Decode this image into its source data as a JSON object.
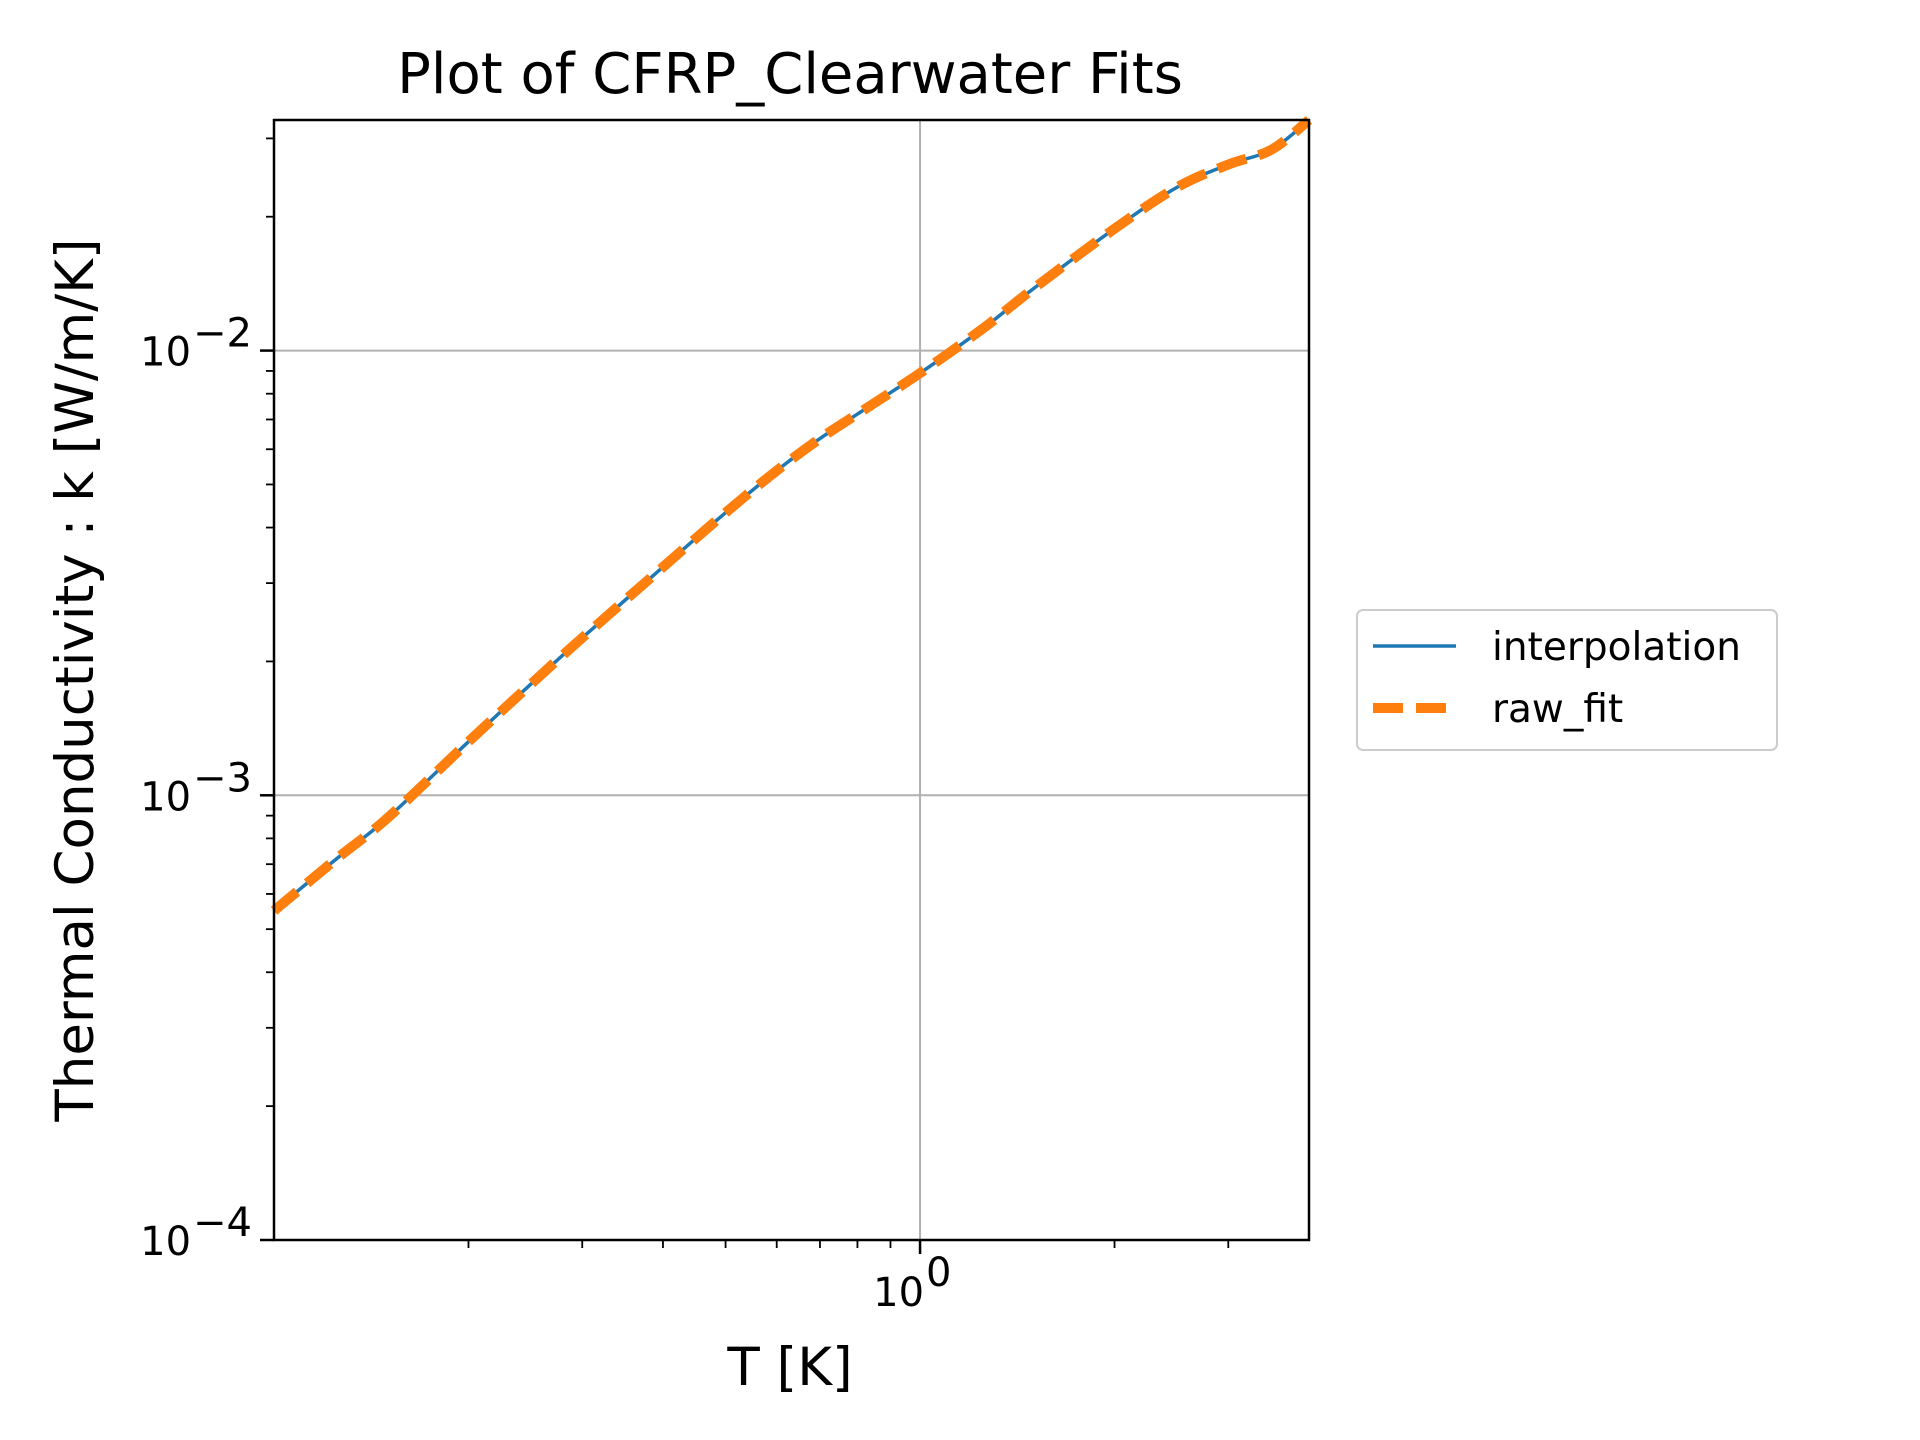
{
  "chart_data": {
    "type": "line",
    "title": "Plot of CFRP_Clearwater Fits",
    "xlabel": "T [K]",
    "ylabel": "Thermal Conductivity : k [W/m/K]",
    "x_scale": "log",
    "y_scale": "log",
    "xlim": [
      0.1,
      4.0
    ],
    "ylim": [
      0.0001,
      0.033
    ],
    "x_major_ticks": [
      {
        "value": 1,
        "base": "10",
        "exp": "0"
      }
    ],
    "y_major_ticks": [
      {
        "value": 0.0001,
        "base": "10",
        "exp": "−4"
      },
      {
        "value": 0.001,
        "base": "10",
        "exp": "−3"
      },
      {
        "value": 0.01,
        "base": "10",
        "exp": "−2"
      }
    ],
    "grid": true,
    "legend_position": "right-outside",
    "series": [
      {
        "name": "interpolation",
        "color": "#1f77b4",
        "style": "solid",
        "x": [
          0.1,
          0.125,
          0.15,
          0.2,
          0.25,
          0.3,
          0.4,
          0.5,
          0.6,
          0.7,
          0.8,
          1.0,
          1.25,
          1.5,
          2.0,
          2.5,
          3.0,
          3.5,
          4.0
        ],
        "y": [
          0.00055,
          0.00072,
          0.00089,
          0.00132,
          0.00178,
          0.00226,
          0.00326,
          0.00432,
          0.00537,
          0.00634,
          0.0072,
          0.0089,
          0.0112,
          0.0138,
          0.0188,
          0.0233,
          0.0262,
          0.0283,
          0.033
        ]
      },
      {
        "name": "raw_fit",
        "color": "#ff7f0e",
        "style": "dashed",
        "x": [
          0.1,
          0.125,
          0.15,
          0.2,
          0.25,
          0.3,
          0.4,
          0.5,
          0.6,
          0.7,
          0.8,
          1.0,
          1.25,
          1.5,
          2.0,
          2.5,
          3.0,
          3.5,
          4.0
        ],
        "y": [
          0.00055,
          0.00072,
          0.00089,
          0.00132,
          0.00178,
          0.00226,
          0.00326,
          0.00432,
          0.00537,
          0.00634,
          0.0072,
          0.0089,
          0.0112,
          0.0138,
          0.0188,
          0.0233,
          0.0262,
          0.0283,
          0.033
        ]
      }
    ]
  }
}
